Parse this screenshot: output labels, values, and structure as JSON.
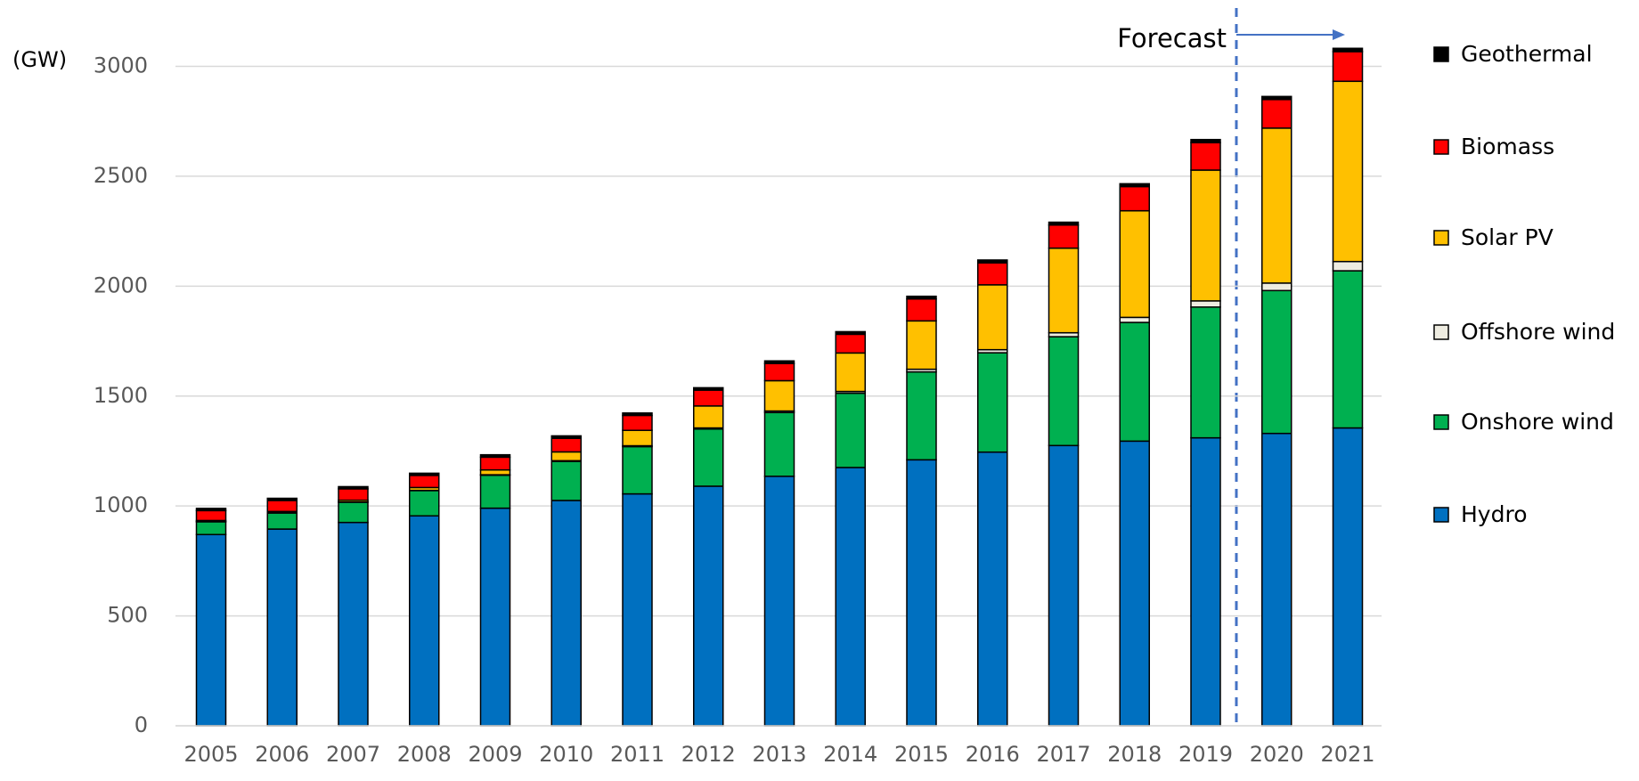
{
  "chart_data": {
    "type": "stacked_bar",
    "ylabel": "(GW)",
    "forecast_label": "Forecast",
    "categories": [
      "2005",
      "2006",
      "2007",
      "2008",
      "2009",
      "2010",
      "2011",
      "2012",
      "2013",
      "2014",
      "2015",
      "2016",
      "2017",
      "2018",
      "2019",
      "2020",
      "2021"
    ],
    "series": [
      {
        "name": "Hydro",
        "color": "#0070c0",
        "values": [
          870,
          895,
          925,
          955,
          990,
          1025,
          1055,
          1090,
          1135,
          1175,
          1210,
          1245,
          1275,
          1295,
          1310,
          1330,
          1355
        ]
      },
      {
        "name": "Onshore wind",
        "color": "#00b050",
        "values": [
          58,
          73,
          92,
          115,
          150,
          178,
          215,
          260,
          290,
          338,
          400,
          452,
          495,
          540,
          595,
          650,
          715
        ]
      },
      {
        "name": "Offshore wind",
        "color": "#eeece1",
        "values": [
          1,
          1,
          1,
          1,
          2,
          3,
          4,
          5,
          7,
          8,
          12,
          14,
          18,
          23,
          28,
          34,
          42
        ]
      },
      {
        "name": "Solar PV",
        "color": "#ffc000",
        "values": [
          5,
          6,
          8,
          13,
          22,
          40,
          70,
          100,
          138,
          175,
          220,
          295,
          385,
          485,
          595,
          705,
          820
        ]
      },
      {
        "name": "Biomass",
        "color": "#ff0000",
        "values": [
          45,
          50,
          52,
          55,
          58,
          62,
          68,
          72,
          78,
          85,
          100,
          100,
          105,
          110,
          125,
          130,
          135
        ]
      },
      {
        "name": "Geothermal",
        "color": "#000000",
        "values": [
          10,
          10,
          10,
          10,
          11,
          11,
          11,
          11,
          12,
          12,
          12,
          13,
          13,
          13,
          14,
          14,
          15
        ]
      }
    ],
    "ylim": [
      0,
      3000
    ],
    "yticks": [
      0,
      500,
      1000,
      1500,
      2000,
      2500,
      3000
    ],
    "grid": true
  }
}
